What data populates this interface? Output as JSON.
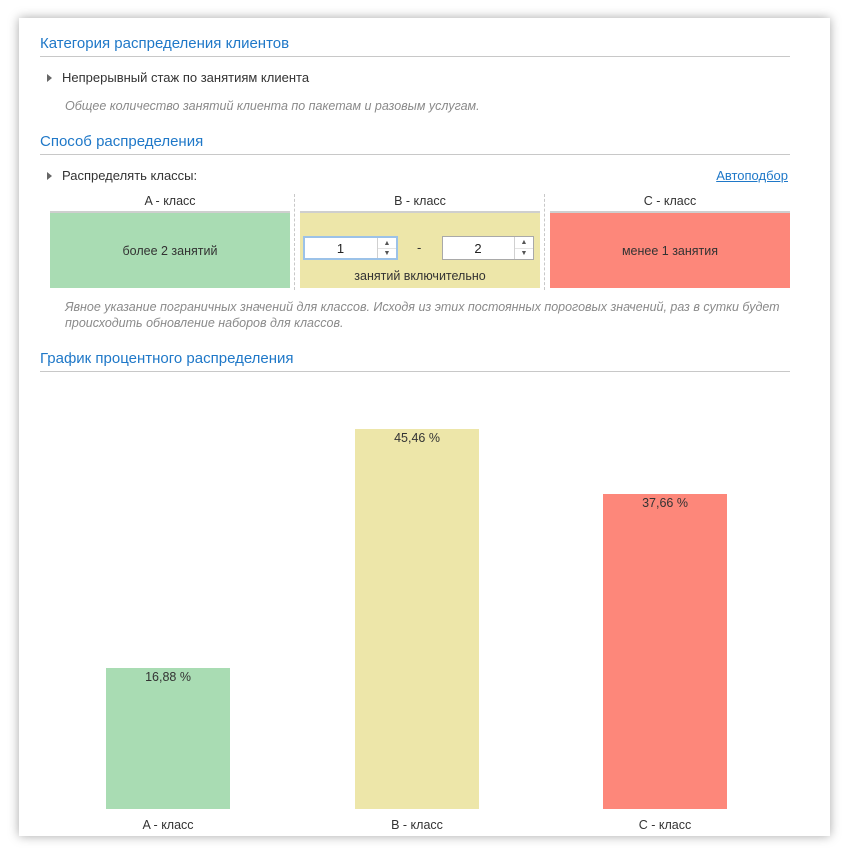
{
  "sections": {
    "category_title": "Категория распределения клиентов",
    "method_title": "Способ распределения",
    "chart_title": "График процентного распределения"
  },
  "category": {
    "label": "Непрерывный стаж по занятиям клиента",
    "hint": "Общее количество занятий клиента по пакетам и разовым услугам."
  },
  "method": {
    "label": "Распределять классы:",
    "auto_link": "Автоподбор",
    "hint": "Явное указание пограничных значений для классов. Исходя из этих постоянных пороговых значений, раз в сутки будет происходить обновление наборов для классов."
  },
  "classes": {
    "a": {
      "title": "A - класс",
      "text": "более 2 занятий",
      "color": "#a9dcb3"
    },
    "b": {
      "title": "B - класс",
      "from": "1",
      "dash": "-",
      "to": "2",
      "suffix": "занятий включительно",
      "color": "#ede6a9"
    },
    "c": {
      "title": "C - класс",
      "text": "менее 1 занятия",
      "color": "#fd877a"
    }
  },
  "icons": {
    "expand": "triangle-right-icon",
    "spin_up": "arrow-up-icon",
    "spin_down": "arrow-down-icon"
  },
  "chart_data": {
    "type": "bar",
    "categories": [
      "A - класс",
      "B - класс",
      "C - класс"
    ],
    "values": [
      16.88,
      45.46,
      37.66
    ],
    "value_labels": [
      "16,88 %",
      "45,46 %",
      "37,66 %"
    ],
    "colors": [
      "#a9dcb3",
      "#ede6a9",
      "#fd877a"
    ],
    "ylim": [
      0,
      45.46
    ],
    "grid": false,
    "xlabel": "",
    "ylabel": ""
  }
}
